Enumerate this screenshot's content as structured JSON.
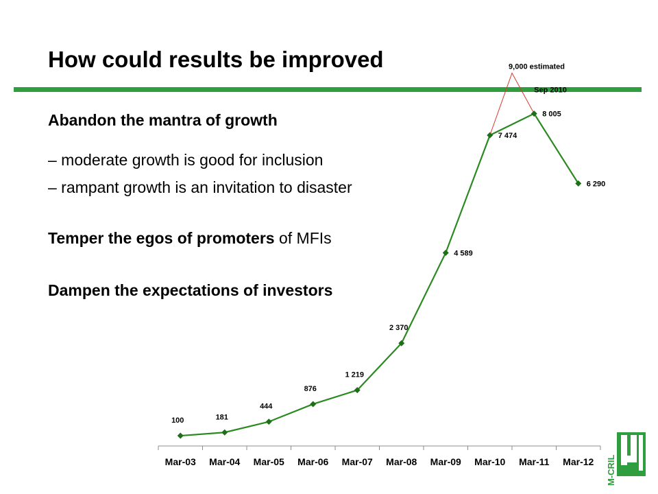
{
  "slide": {
    "title": "How could results be improved",
    "point1": "Abandon the mantra of growth",
    "sub1": "– moderate growth is good for inclusion",
    "sub2": "– rampant growth is an invitation to disaster",
    "point2_bold": "Temper the egos of promoters",
    "point2_rest": " of MFIs",
    "point3": "Dampen the  expectations of investors"
  },
  "logo": {
    "text": "M-CRIL",
    "icon": "mcril-logo",
    "color": "#2e9e3e"
  },
  "colors": {
    "accent": "#2e9e3e",
    "series": "#2a8a1f",
    "marker": "#1f6e1a",
    "estimate": "#d9372b"
  },
  "chart_data": {
    "type": "line",
    "categories": [
      "Mar-03",
      "Mar-04",
      "Mar-05",
      "Mar-06",
      "Mar-07",
      "Mar-08",
      "Mar-09",
      "Mar-10",
      "Mar-11",
      "Mar-12"
    ],
    "series": [
      {
        "values": [
          100,
          181,
          444,
          876,
          1219,
          2370,
          4589,
          7474,
          8005,
          6290
        ],
        "labels": [
          "100",
          "181",
          "444",
          "876",
          "1 219",
          "2 370",
          "4 589",
          "7 474",
          "8 005",
          "6 290"
        ]
      }
    ],
    "estimate": {
      "peak_value": 9000,
      "peak_label": "9,000 estimated",
      "date_label": "Sep 2010"
    },
    "ylim": [
      0,
      9000
    ],
    "grid": false,
    "legend": "none"
  }
}
